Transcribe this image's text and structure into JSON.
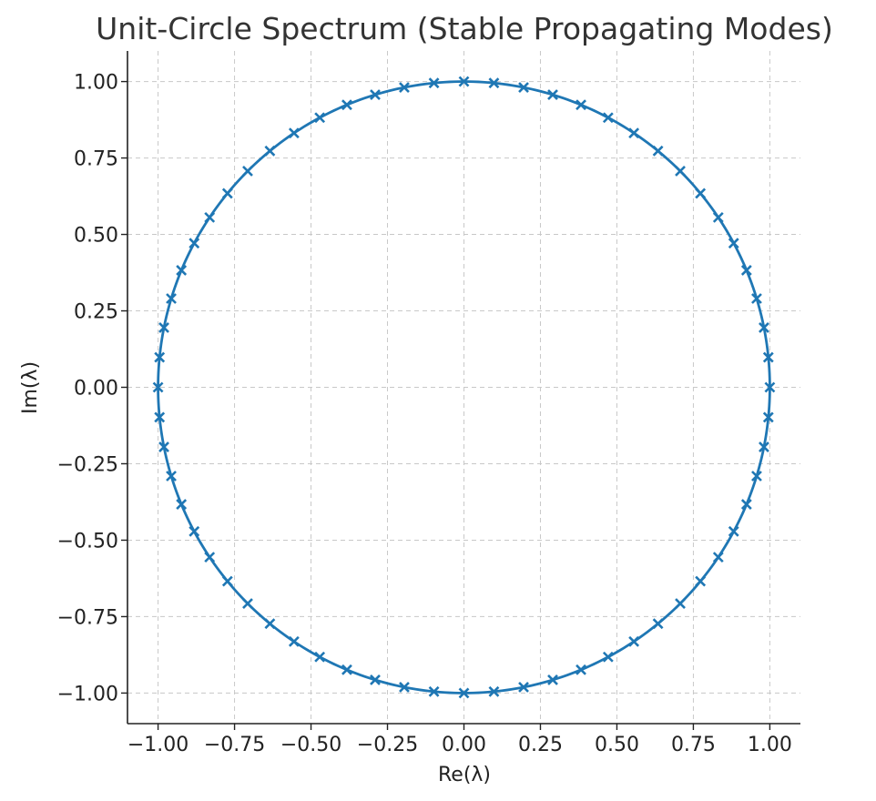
{
  "chart_data": {
    "type": "scatter",
    "title": "Unit-Circle Spectrum (Stable Propagating Modes)",
    "xlabel": "Re(λ)",
    "ylabel": "Im(λ)",
    "xlim": [
      -1.1,
      1.1
    ],
    "ylim": [
      -1.1,
      1.1
    ],
    "xticks": [
      -1.0,
      -0.75,
      -0.5,
      -0.25,
      0.0,
      0.25,
      0.5,
      0.75,
      1.0
    ],
    "yticks": [
      -1.0,
      -0.75,
      -0.5,
      -0.25,
      0.0,
      0.25,
      0.5,
      0.75,
      1.0
    ],
    "xtick_labels": [
      "−1.00",
      "−0.75",
      "−0.50",
      "−0.25",
      "0.00",
      "0.25",
      "0.50",
      "0.75",
      "1.00"
    ],
    "ytick_labels": [
      "−1.00",
      "−0.75",
      "−0.50",
      "−0.25",
      "0.00",
      "0.25",
      "0.50",
      "0.75",
      "1.00"
    ],
    "grid": true,
    "color": "#1f77b4",
    "series": [
      {
        "kind": "line",
        "curve": "unit circle",
        "x_formula": "cos(t)",
        "y_formula": "sin(t)",
        "t_range": [
          0,
          6.283185307179586
        ]
      },
      {
        "kind": "scatter",
        "marker": "x",
        "count": 64,
        "x_formula": "cos(2*pi*k/64)",
        "y_formula": "sin(2*pi*k/64)"
      }
    ]
  }
}
